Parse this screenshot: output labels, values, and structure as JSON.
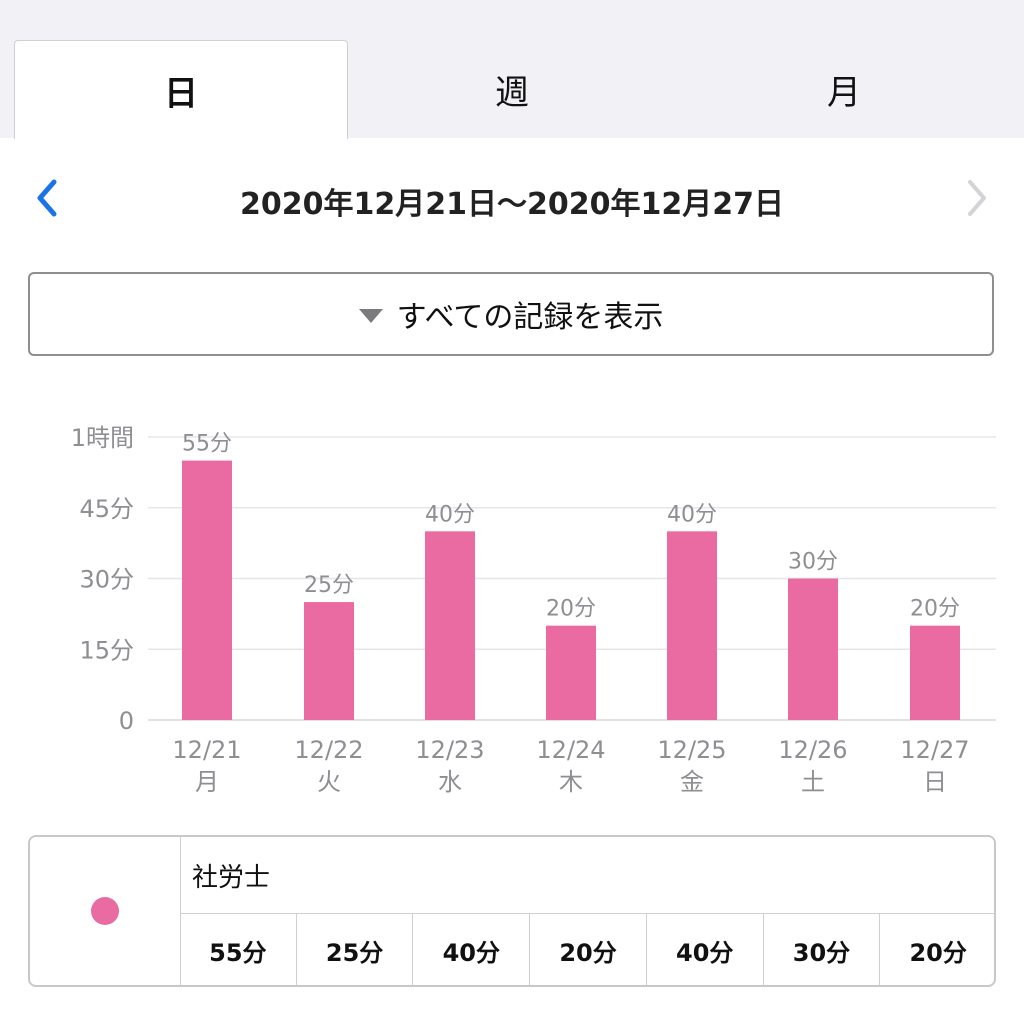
{
  "tabs": [
    {
      "label": "日",
      "active": true
    },
    {
      "label": "週",
      "active": false
    },
    {
      "label": "月",
      "active": false
    }
  ],
  "date_range": "2020年12月21日〜2020年12月27日",
  "nav": {
    "prev_icon": "chevron-left-icon",
    "next_icon": "chevron-right-icon"
  },
  "filter": {
    "label": "すべての記録を表示",
    "icon": "triangle-down-icon"
  },
  "colors": {
    "bar": "#ea6aa2",
    "accent": "#1a73e8",
    "disabled": "#d4d4d8",
    "axis_text": "#8e8e93",
    "grid": "#e6e6ea"
  },
  "chart_data": {
    "type": "bar",
    "categories": [
      "12/21",
      "12/22",
      "12/23",
      "12/24",
      "12/25",
      "12/26",
      "12/27"
    ],
    "weekdays": [
      "月",
      "火",
      "水",
      "木",
      "金",
      "土",
      "日"
    ],
    "values": [
      55,
      25,
      40,
      20,
      40,
      30,
      20
    ],
    "data_labels": [
      "55分",
      "25分",
      "40分",
      "20分",
      "40分",
      "30分",
      "20分"
    ],
    "yticks": [
      0,
      15,
      30,
      45,
      60
    ],
    "ytick_labels": [
      "0",
      "15分",
      "30分",
      "45分",
      "1時間"
    ],
    "ylim": [
      0,
      60
    ],
    "grid": true
  },
  "summary": {
    "name": "社労士",
    "values": [
      "55分",
      "25分",
      "40分",
      "20分",
      "40分",
      "30分",
      "20分"
    ]
  }
}
